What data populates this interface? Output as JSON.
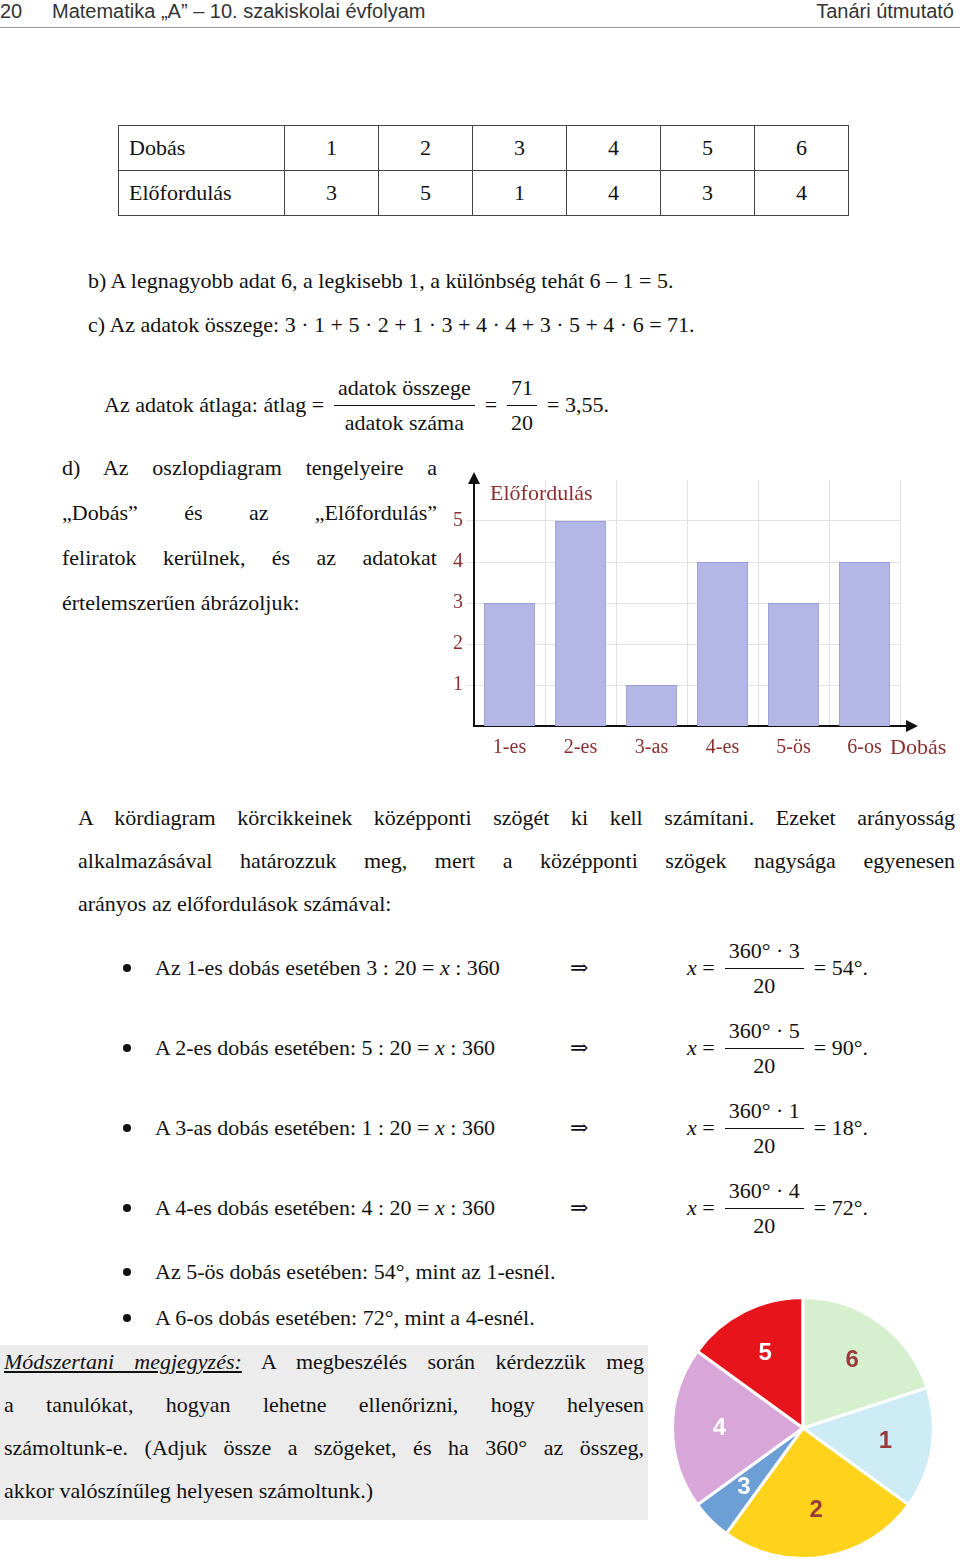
{
  "header": {
    "page": "20",
    "title": "Matematika „A” – 10. szakiskolai évfolyam",
    "right": "Tanári útmutató"
  },
  "table": {
    "rows": [
      [
        "Dobás",
        "1",
        "2",
        "3",
        "4",
        "5",
        "6"
      ],
      [
        "Előfordulás",
        "3",
        "5",
        "1",
        "4",
        "3",
        "4"
      ]
    ]
  },
  "b": "b) A legnagyobb adat 6, a legkisebb 1, a különbség tehát 6 – 1 = 5.",
  "c": "c) Az adatok összege: 3 · 1 + 5 · 2 + 1 · 3 + 4 · 4 + 3 · 5 + 4 · 6 = 71.",
  "average": [
    {
      "t": "Az adatok átlaga: átlag ="
    },
    {
      "num": "adatok összege",
      "den": "adatok száma"
    },
    {
      "t": "="
    },
    {
      "num": "71",
      "den": "20"
    },
    {
      "t": "= 3,55."
    }
  ],
  "d": [
    "d) Az oszlopdiagram tengelyeire a",
    "„Dobás” és az „Előfordulás”",
    "feliratok kerülnek, és az adatokat",
    "értelemszerűen ábrázoljuk:"
  ],
  "paragraph": [
    "A kördiagram körcikkeinek középponti szögét ki kell számítani. Ezeket arányosság",
    "alkalmazásával határozzuk meg, mert a középponti szögek nagysága egyenesen",
    "arányos az előfordulások számával:"
  ],
  "bullets": [
    {
      "text": "Az 1-es dobás esetében 3 : 20 = x : 360",
      "parts": [
        {
          "t": "⇒"
        },
        {
          "t": "x ="
        },
        {
          "num": "360° · 3",
          "den": "20"
        },
        {
          "t": "= 54°."
        }
      ]
    },
    {
      "text": "A 2-es dobás esetében: 5 : 20 = x : 360",
      "parts": [
        {
          "t": "⇒"
        },
        {
          "t": "x ="
        },
        {
          "num": "360° · 5",
          "den": "20"
        },
        {
          "t": "= 90°."
        }
      ]
    },
    {
      "text": "A 3-as dobás esetében: 1 : 20 = x : 360",
      "parts": [
        {
          "t": "⇒"
        },
        {
          "t": "x ="
        },
        {
          "num": "360° · 1",
          "den": "20"
        },
        {
          "t": "= 18°."
        }
      ]
    },
    {
      "text": "A 4-es dobás esetében: 4 : 20 = x : 360",
      "parts": [
        {
          "t": "⇒"
        },
        {
          "t": "x ="
        },
        {
          "num": "360° · 4",
          "den": "20"
        },
        {
          "t": "= 72°."
        }
      ]
    },
    {
      "text": "Az 5-ös dobás esetében: 54°, mint az 1-esnél.",
      "parts": []
    },
    {
      "text": "A 6-os dobás esetében: 72°, mint a 4-esnél.",
      "parts": []
    }
  ],
  "note": {
    "label": "Módszertani megjegyzés:",
    "lines": [
      " A megbeszélés során kérdezzük meg",
      "a tanulókat, hogyan lehetne ellenőrizni, hogy helyesen",
      "számoltunk-e. (Adjuk össze a szögeket, és ha 360° az összeg,",
      "akkor valószínűleg helyesen számoltunk.)"
    ]
  },
  "chart_data": [
    {
      "type": "bar",
      "x_label": "Dobás",
      "y_label": "Előfordulás",
      "categories": [
        "1-es",
        "2-es",
        "3-as",
        "4-es",
        "5-ös",
        "6-os"
      ],
      "values": [
        3,
        5,
        1,
        4,
        3,
        4
      ],
      "color": "#b4b6e6",
      "ylim": [
        0,
        6
      ],
      "yticks": [
        1,
        2,
        3,
        4,
        5
      ],
      "grid": true
    },
    {
      "type": "pie",
      "categories": [
        "1",
        "2",
        "3",
        "4",
        "5",
        "6"
      ],
      "values": [
        54,
        90,
        18,
        72,
        54,
        72
      ],
      "colors": [
        "#cdecf6",
        "#ffd21c",
        "#6b9fd6",
        "#d9a6d9",
        "#e8141c",
        "#d6f0cf"
      ]
    }
  ]
}
